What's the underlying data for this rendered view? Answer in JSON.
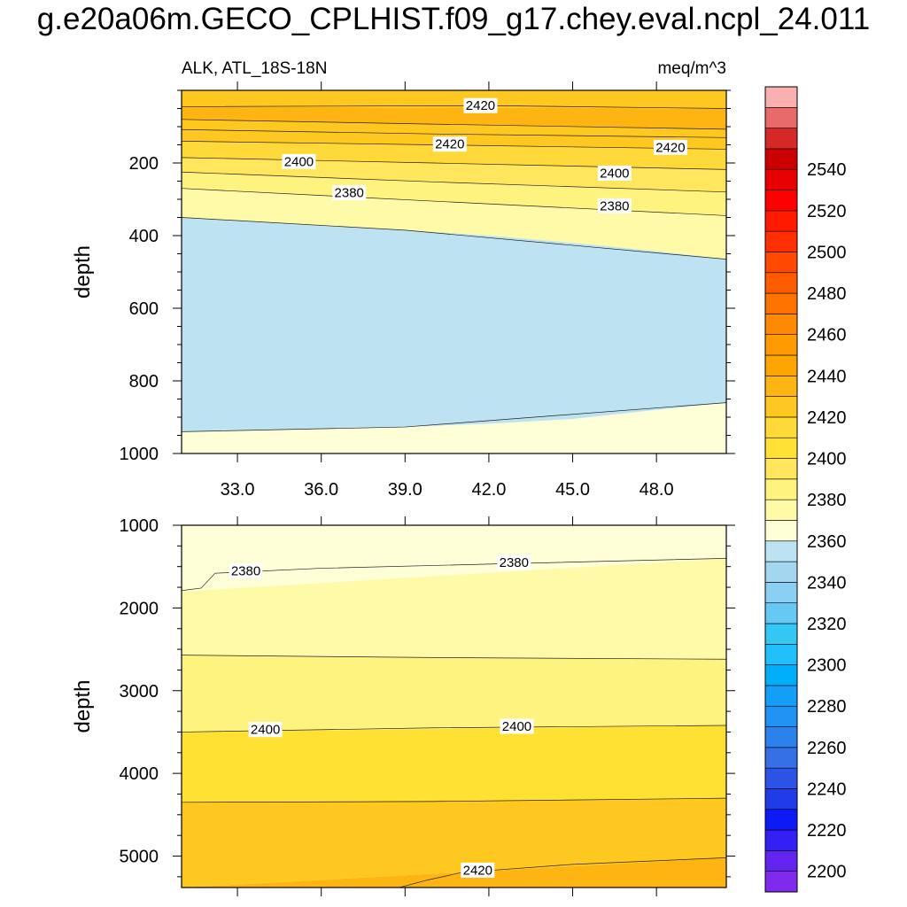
{
  "title": "g.e20a06m.GECO_CPLHIST.f09_g17.chey.eval.ncpl_24.011",
  "chart_data": [
    {
      "type": "contour",
      "panel": "upper",
      "title_left": "ALK, ATL_18S-18N",
      "title_right": "meq/m^3",
      "xlabel": "",
      "ylabel": "depth",
      "xlim": [
        31,
        50.5
      ],
      "ylim": [
        0,
        1000
      ],
      "y_reversed": true,
      "xticks": [
        33,
        36,
        39,
        42,
        45,
        48
      ],
      "xtick_labels": [
        "33.0",
        "36.0",
        "39.0",
        "42.0",
        "45.0",
        "48.0"
      ],
      "yticks": [
        200,
        400,
        600,
        800,
        1000
      ],
      "ytick_labels": [
        "200",
        "400",
        "600",
        "800",
        "1000"
      ],
      "bands": [
        {
          "color": "#feffd7",
          "top_left": 350,
          "top_right": 465,
          "bottom_left": 1000,
          "bottom_right": 1000
        },
        {
          "color": "#fffaa8",
          "top_left": 270,
          "top_right": 345,
          "bottom_left": 350,
          "bottom_right": 465
        },
        {
          "color": "#fff380",
          "top_left": 225,
          "top_right": 280,
          "bottom_left": 270,
          "bottom_right": 345
        },
        {
          "color": "#ffe65c",
          "top_left": 185,
          "top_right": 218,
          "bottom_left": 225,
          "bottom_right": 280
        },
        {
          "color": "#ffd83a",
          "top_left": 140,
          "top_right": 162,
          "bottom_left": 185,
          "bottom_right": 218
        },
        {
          "color": "#ffc821",
          "top_left": 80,
          "top_right": 107,
          "bottom_left": 140,
          "bottom_right": 162
        },
        {
          "color": "#ffb511",
          "top_left": 45,
          "top_right": 50,
          "bottom_left": 80,
          "bottom_right": 107
        },
        {
          "color": "#ffc821",
          "top_left": 0,
          "top_right": 0,
          "bottom_left": 45,
          "bottom_right": 50
        }
      ],
      "overlay": {
        "color": "#bde3f3",
        "top": [
          [
            31,
            350
          ],
          [
            33,
            358
          ],
          [
            36,
            372
          ],
          [
            39,
            385
          ],
          [
            42,
            400
          ],
          [
            45,
            420
          ],
          [
            48,
            443
          ],
          [
            50.5,
            465
          ]
        ],
        "bottom": [
          [
            50.5,
            860
          ],
          [
            48,
            880
          ],
          [
            45,
            905
          ],
          [
            42,
            918
          ],
          [
            39,
            927
          ],
          [
            36,
            933
          ],
          [
            33,
            936
          ],
          [
            31,
            940
          ]
        ]
      },
      "contour_lines": [
        {
          "points": [
            [
              31,
              45
            ],
            [
              42,
              42
            ],
            [
              50.5,
              50
            ]
          ]
        },
        {
          "points": [
            [
              31,
              80
            ],
            [
              40,
              93
            ],
            [
              50.5,
              107
            ]
          ]
        },
        {
          "points": [
            [
              31,
              108
            ],
            [
              40,
              120
            ],
            [
              50.5,
              130
            ]
          ]
        },
        {
          "points": [
            [
              31,
              140
            ],
            [
              40,
              150
            ],
            [
              50.5,
              162
            ]
          ]
        },
        {
          "points": [
            [
              31,
              185
            ],
            [
              40,
              200
            ],
            [
              50.5,
              218
            ]
          ]
        },
        {
          "points": [
            [
              31,
              225
            ],
            [
              40,
              252
            ],
            [
              50.5,
              280
            ]
          ]
        },
        {
          "points": [
            [
              31,
              270
            ],
            [
              40,
              305
            ],
            [
              50.5,
              345
            ]
          ]
        },
        {
          "points": [
            [
              31,
              350
            ],
            [
              39,
              385
            ],
            [
              50.5,
              465
            ]
          ]
        },
        {
          "points": [
            [
              31,
              940
            ],
            [
              39,
              927
            ],
            [
              50.5,
              860
            ]
          ]
        }
      ],
      "contour_labels": [
        {
          "text": "2420",
          "x": 41.7,
          "y": 42
        },
        {
          "text": "2420",
          "x": 40.6,
          "y": 148
        },
        {
          "text": "2420",
          "x": 48.5,
          "y": 157
        },
        {
          "text": "2400",
          "x": 35.2,
          "y": 196
        },
        {
          "text": "2400",
          "x": 46.5,
          "y": 228
        },
        {
          "text": "2380",
          "x": 37,
          "y": 282
        },
        {
          "text": "2380",
          "x": 46.5,
          "y": 318
        }
      ]
    },
    {
      "type": "contour",
      "panel": "lower",
      "xlabel": "",
      "ylabel": "depth",
      "xlim": [
        31,
        50.5
      ],
      "ylim": [
        1000,
        5380
      ],
      "y_reversed": true,
      "yticks": [
        1000,
        2000,
        3000,
        4000,
        5000
      ],
      "ytick_labels": [
        "1000",
        "2000",
        "3000",
        "4000",
        "5000"
      ],
      "bands": [
        {
          "color": "#ffb511",
          "top_left": 5380,
          "top_right": 5020,
          "bottom_left": 5380,
          "bottom_right": 5380
        },
        {
          "color": "#ffc821",
          "top_left": 4350,
          "top_right": 4300,
          "bottom_left": 5380,
          "bottom_right": 5020
        },
        {
          "color": "#ffe133",
          "top_left": 3500,
          "top_right": 3420,
          "bottom_left": 4350,
          "bottom_right": 4300
        },
        {
          "color": "#fff380",
          "top_left": 2570,
          "top_right": 2620,
          "bottom_left": 3500,
          "bottom_right": 3420
        },
        {
          "color": "#fffaa8",
          "top_left": 1800,
          "top_right": 1400,
          "bottom_left": 2570,
          "bottom_right": 2620
        },
        {
          "color": "#feffd7",
          "top_left": 1000,
          "top_right": 1000,
          "bottom_left": 1800,
          "bottom_right": 1400
        }
      ],
      "contour_lines": [
        {
          "points": [
            [
              31,
              1790
            ],
            [
              31.7,
              1760
            ],
            [
              32.2,
              1580
            ],
            [
              36,
              1520
            ],
            [
              42,
              1470
            ],
            [
              50.5,
              1400
            ]
          ]
        },
        {
          "points": [
            [
              31,
              2570
            ],
            [
              40,
              2600
            ],
            [
              50.5,
              2620
            ]
          ]
        },
        {
          "points": [
            [
              31,
              3500
            ],
            [
              40,
              3450
            ],
            [
              50.5,
              3420
            ]
          ]
        },
        {
          "points": [
            [
              31,
              4350
            ],
            [
              40,
              4340
            ],
            [
              50.5,
              4300
            ]
          ]
        },
        {
          "points": [
            [
              38.8,
              5380
            ],
            [
              39.8,
              5290
            ],
            [
              41,
              5200
            ],
            [
              45,
              5100
            ],
            [
              50.5,
              5020
            ]
          ]
        }
      ],
      "contour_labels": [
        {
          "text": "2380",
          "x": 33.3,
          "y": 1550
        },
        {
          "text": "2380",
          "x": 42.9,
          "y": 1450
        },
        {
          "text": "2400",
          "x": 34,
          "y": 3470
        },
        {
          "text": "2400",
          "x": 43,
          "y": 3430
        },
        {
          "text": "2420",
          "x": 41.6,
          "y": 5170
        }
      ]
    }
  ],
  "colorbar": {
    "labels": [
      "2200",
      "2220",
      "2240",
      "2260",
      "2280",
      "2300",
      "2320",
      "2340",
      "2360",
      "2380",
      "2400",
      "2420",
      "2440",
      "2460",
      "2480",
      "2500",
      "2520",
      "2540"
    ],
    "colors_bottom_to_top": [
      "#7f2aec",
      "#6323f0",
      "#3320f2",
      "#0d1af6",
      "#1f3bea",
      "#2c52e6",
      "#3670e6",
      "#2b82ed",
      "#1f92f3",
      "#139ef9",
      "#00aff9",
      "#22c0fb",
      "#33c8f4",
      "#67c8f4",
      "#8bd0f2",
      "#a3d7f0",
      "#bde3f3",
      "#feffd7",
      "#fffaa8",
      "#fff380",
      "#ffe65c",
      "#ffe133",
      "#ffd83a",
      "#ffc821",
      "#ffb511",
      "#ffa500",
      "#ff9a00",
      "#ff8a00",
      "#ff7300",
      "#ff5c00",
      "#ff4a00",
      "#ff3000",
      "#ff1a00",
      "#ff0000",
      "#e60000",
      "#cc0000",
      "#d72828",
      "#e96a6a",
      "#fbb0b0"
    ]
  }
}
